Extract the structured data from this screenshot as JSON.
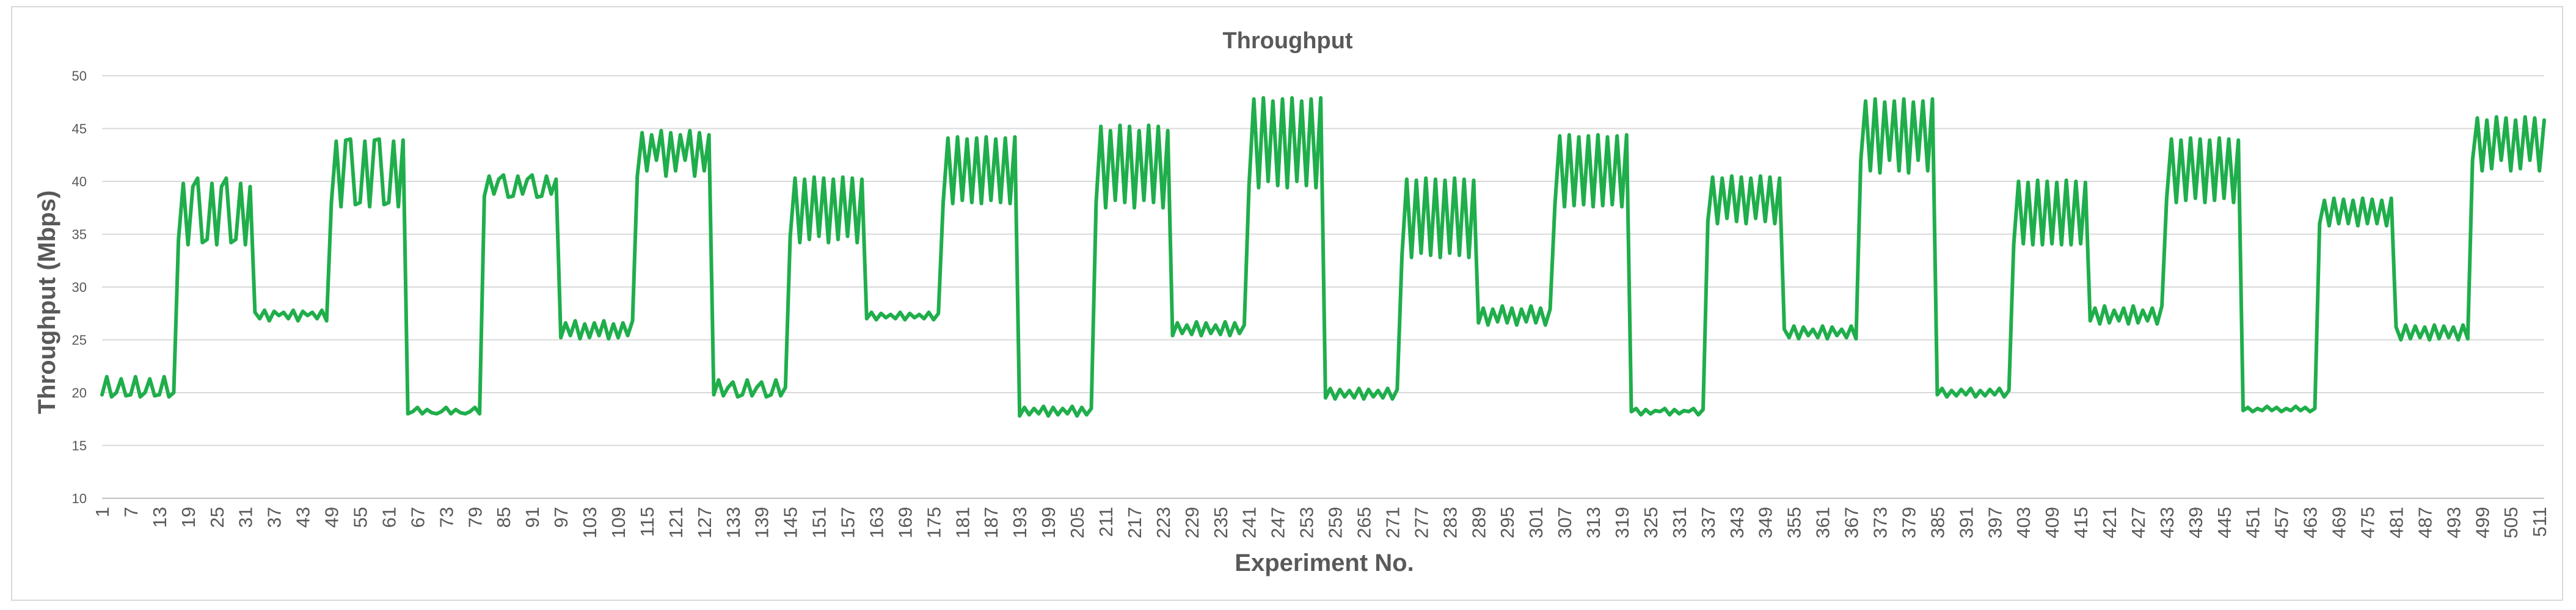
{
  "chart_data": {
    "type": "line",
    "title": "Throughput",
    "xlabel": "Experiment No.",
    "ylabel": "Throughput  (Mbps)",
    "ylim": [
      10,
      50
    ],
    "yticks": [
      10,
      15,
      20,
      25,
      30,
      35,
      40,
      45,
      50
    ],
    "xlim": [
      1,
      512
    ],
    "xtick_labels": [
      "1",
      "7",
      "13",
      "19",
      "25",
      "31",
      "37",
      "43",
      "49",
      "55",
      "61",
      "67",
      "73",
      "79",
      "85",
      "91",
      "97",
      "103",
      "109",
      "115",
      "121",
      "127",
      "133",
      "139",
      "145",
      "151",
      "157",
      "163",
      "169",
      "175",
      "181",
      "187",
      "193",
      "199",
      "205",
      "211",
      "217",
      "223",
      "229",
      "235",
      "241",
      "247",
      "253",
      "259",
      "265",
      "271",
      "277",
      "283",
      "289",
      "295",
      "301",
      "307",
      "313",
      "319",
      "325",
      "331",
      "337",
      "343",
      "349",
      "355",
      "361",
      "367",
      "373",
      "379",
      "385",
      "391",
      "397",
      "403",
      "409",
      "415",
      "421",
      "427",
      "433",
      "439",
      "445",
      "451",
      "457",
      "463",
      "469",
      "475",
      "481",
      "487",
      "493",
      "499",
      "505",
      "511"
    ],
    "grid": true,
    "legend": "none",
    "series": [
      {
        "name": "Throughput",
        "color": "#1fae4b",
        "segments": [
          {
            "start": 1,
            "pattern": [
              19.8,
              21.5,
              19.6,
              20.0,
              21.3,
              19.7
            ]
          },
          {
            "start": 17,
            "pattern": [
              34.5,
              39.8,
              34.0,
              39.5,
              40.3,
              34.2
            ]
          },
          {
            "start": 33,
            "pattern": [
              27.6,
              27.0,
              27.8,
              26.8,
              27.7,
              27.3
            ]
          },
          {
            "start": 49,
            "pattern": [
              38.0,
              43.8,
              37.6,
              43.9,
              44.0,
              37.8
            ]
          },
          {
            "start": 65,
            "pattern": [
              18.0,
              18.2,
              18.6,
              18.0,
              18.4,
              18.1
            ]
          },
          {
            "start": 81,
            "pattern": [
              38.6,
              40.5,
              38.8,
              40.2,
              40.6,
              38.5
            ]
          },
          {
            "start": 97,
            "pattern": [
              25.2,
              26.6,
              25.4,
              26.8,
              25.1,
              26.5
            ]
          },
          {
            "start": 113,
            "pattern": [
              40.5,
              44.6,
              41.0,
              44.4,
              42.0,
              44.8
            ]
          },
          {
            "start": 129,
            "pattern": [
              19.8,
              21.2,
              19.7,
              20.5,
              21.0,
              19.6
            ]
          },
          {
            "start": 145,
            "pattern": [
              34.8,
              40.3,
              34.2,
              40.2,
              34.5,
              40.4
            ]
          },
          {
            "start": 161,
            "pattern": [
              27.0,
              27.6,
              26.9,
              27.5,
              27.1,
              27.4
            ]
          },
          {
            "start": 177,
            "pattern": [
              38.0,
              44.1,
              37.9,
              44.2,
              38.2,
              44.0
            ]
          },
          {
            "start": 193,
            "pattern": [
              17.8,
              18.6,
              17.9,
              18.5,
              18.0,
              18.7
            ]
          },
          {
            "start": 209,
            "pattern": [
              38.0,
              45.2,
              37.5,
              44.8,
              38.2,
              45.3
            ]
          },
          {
            "start": 225,
            "pattern": [
              25.4,
              26.6,
              25.6,
              26.4,
              25.5,
              26.7
            ]
          },
          {
            "start": 241,
            "pattern": [
              39.6,
              47.8,
              39.4,
              47.9,
              40.0,
              47.6
            ]
          },
          {
            "start": 257,
            "pattern": [
              19.5,
              20.4,
              19.4,
              20.3,
              19.6,
              20.2
            ]
          },
          {
            "start": 273,
            "pattern": [
              33.0,
              40.2,
              32.8,
              40.1,
              33.2,
              40.3
            ]
          },
          {
            "start": 289,
            "pattern": [
              26.6,
              28.0,
              26.4,
              27.9,
              26.7,
              28.2
            ]
          },
          {
            "start": 305,
            "pattern": [
              37.8,
              44.3,
              37.6,
              44.4,
              37.7,
              44.2
            ]
          },
          {
            "start": 321,
            "pattern": [
              18.2,
              18.5,
              17.9,
              18.4,
              18.0,
              18.3
            ]
          },
          {
            "start": 337,
            "pattern": [
              36.2,
              40.4,
              36.0,
              40.3,
              36.5,
              40.5
            ]
          },
          {
            "start": 353,
            "pattern": [
              26.0,
              25.2,
              26.3,
              25.1,
              26.2,
              25.4
            ]
          },
          {
            "start": 369,
            "pattern": [
              42.0,
              47.6,
              41.0,
              47.8,
              40.8,
              47.5
            ]
          },
          {
            "start": 385,
            "pattern": [
              19.8,
              20.4,
              19.6,
              20.2,
              19.7,
              20.3
            ]
          },
          {
            "start": 401,
            "pattern": [
              34.0,
              40.0,
              34.1,
              39.9,
              34.0,
              40.1
            ]
          },
          {
            "start": 417,
            "pattern": [
              26.8,
              28.0,
              26.5,
              28.2,
              26.6,
              27.8
            ]
          },
          {
            "start": 433,
            "pattern": [
              38.4,
              44.0,
              38.0,
              43.9,
              38.2,
              44.1
            ]
          },
          {
            "start": 449,
            "pattern": [
              18.3,
              18.6,
              18.2,
              18.5,
              18.3,
              18.7
            ]
          },
          {
            "start": 465,
            "pattern": [
              36.0,
              38.2,
              35.8,
              38.4,
              36.0,
              38.3
            ]
          },
          {
            "start": 481,
            "pattern": [
              26.2,
              25.0,
              26.4,
              25.1,
              26.3,
              25.2
            ]
          },
          {
            "start": 497,
            "pattern": [
              42.0,
              46.0,
              41.0,
              45.8,
              41.2,
              46.1
            ]
          }
        ]
      }
    ]
  }
}
